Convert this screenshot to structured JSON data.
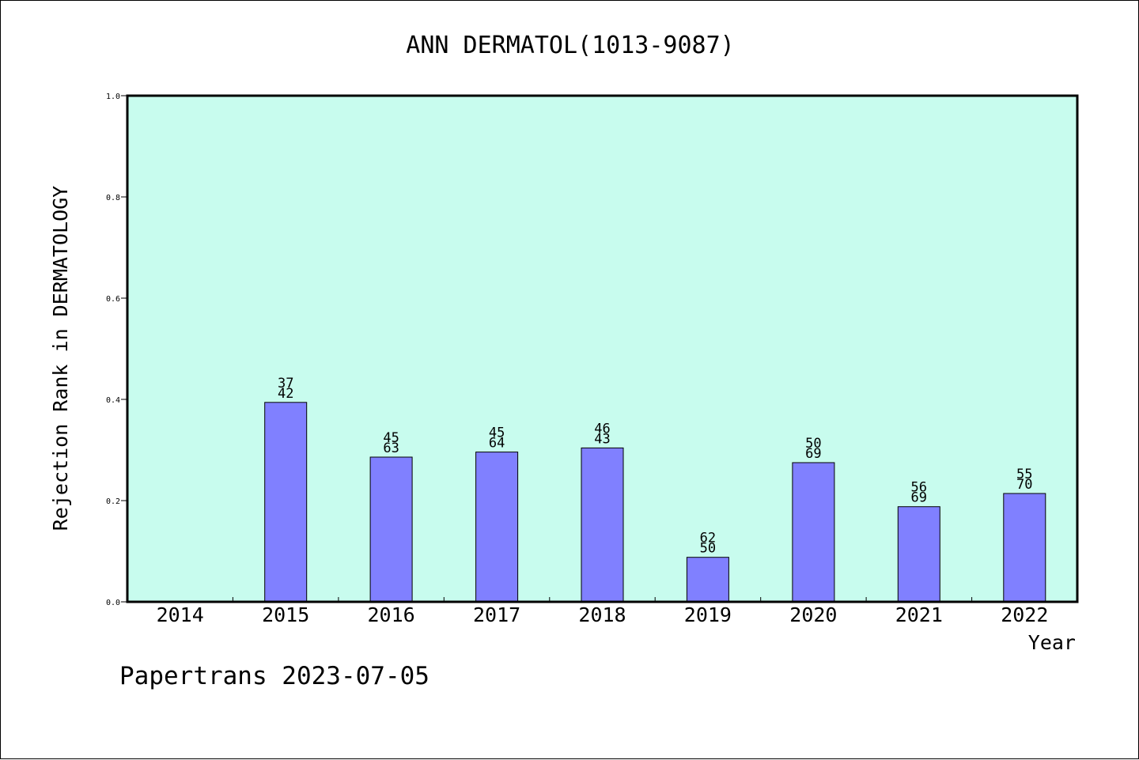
{
  "chart_data": {
    "type": "bar",
    "title": "ANN DERMATOL(1013-9087)",
    "xlabel": "Year",
    "ylabel": "Rejection Rank in DERMATOLOGY",
    "footer": "Papertrans 2023-07-05",
    "categories": [
      "2014",
      "2015",
      "2016",
      "2017",
      "2018",
      "2019",
      "2020",
      "2021",
      "2022"
    ],
    "values": [
      null,
      0.394,
      0.286,
      0.296,
      0.304,
      0.088,
      0.275,
      0.188,
      0.214
    ],
    "label_top": [
      "",
      "37",
      "45",
      "45",
      "46",
      "62",
      "50",
      "56",
      "55"
    ],
    "label_bottom": [
      "",
      "42",
      "63",
      "64",
      "43",
      "50",
      "69",
      "69",
      "70"
    ],
    "ylim": [
      0,
      1.0
    ],
    "yticks": [
      "0.0",
      "0.2",
      "0.4",
      "0.6",
      "0.8",
      "1.0"
    ],
    "grid": false,
    "legend": "none",
    "colors": {
      "plot_background": "#c8fcee",
      "bar": "#8080ff",
      "bar_edge": "#000000",
      "axis": "#000000"
    }
  }
}
